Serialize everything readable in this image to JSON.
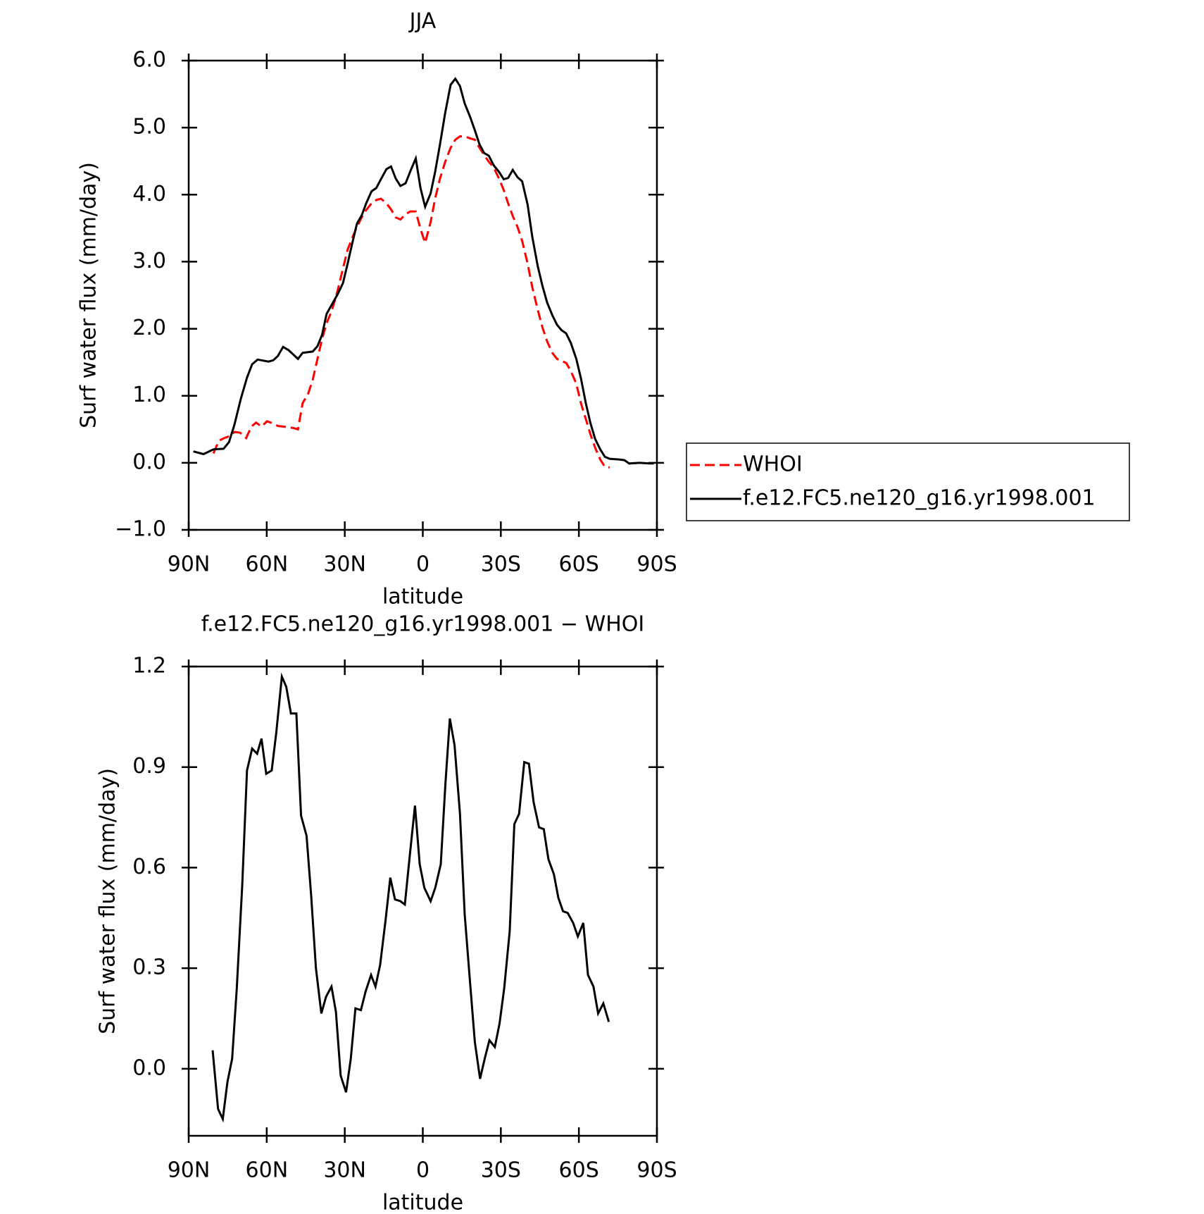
{
  "chart_data": [
    {
      "type": "line",
      "title": "JJA",
      "xlabel": "latitude",
      "ylabel": "Surf water flux (mm/day)",
      "xlim": [
        90,
        -90
      ],
      "xticks": [
        {
          "value": 90,
          "label": "90N"
        },
        {
          "value": 60,
          "label": "60N"
        },
        {
          "value": 30,
          "label": "30N"
        },
        0,
        {
          "value": -30,
          "label": "30S"
        },
        {
          "value": -60,
          "label": "60S"
        },
        {
          "value": -90,
          "label": "90S"
        }
      ],
      "ylim": [
        -1,
        6
      ],
      "yticks": [
        {
          "value": -1,
          "label": "−1.0"
        },
        {
          "value": 0,
          "label": "0.0"
        },
        {
          "value": 1,
          "label": "1.0"
        },
        {
          "value": 2,
          "label": "2.0"
        },
        {
          "value": 3,
          "label": "3.0"
        },
        {
          "value": 4,
          "label": "4.0"
        },
        {
          "value": 5,
          "label": "5.0"
        },
        {
          "value": 6,
          "label": "6.0"
        }
      ],
      "legend": "outside-right",
      "series": [
        {
          "name": "WHOI",
          "color": "#ff0000",
          "line_style": "dashed",
          "x": [
            80.5,
            78.4,
            76.3,
            74.2,
            72.4,
            70.3,
            67.9,
            65.9,
            64.1,
            62.0,
            59.9,
            57.8,
            55.7,
            53.6,
            51.6,
            49.8,
            48.0,
            46.2,
            44.1,
            42.3,
            40.5,
            38.7,
            37.0,
            34.9,
            32.8,
            31.0,
            28.9,
            27.1,
            25.3,
            23.5,
            21.8,
            19.7,
            17.9,
            16.1,
            14.0,
            12.2,
            10.4,
            8.6,
            6.6,
            4.8,
            2.7,
            0.9,
            -0.9,
            -3.0,
            -4.8,
            -6.6,
            -8.6,
            -10.7,
            -12.5,
            -14.3,
            -16.1,
            -18.2,
            -20.0,
            -21.8,
            -23.6,
            -25.4,
            -27.2,
            -29.3,
            -31.1,
            -32.8,
            -34.6,
            -36.4,
            -38.2,
            -40.3,
            -42.1,
            -44.2,
            -46.0,
            -47.8,
            -49.8,
            -51.6,
            -53.3,
            -55.1,
            -56.9,
            -59.0,
            -60.8,
            -62.6,
            -64.4,
            -66.2,
            -68.2,
            -70.0,
            -71.8
          ],
          "values": [
            0.14,
            0.33,
            0.37,
            0.4,
            0.46,
            0.45,
            0.37,
            0.54,
            0.6,
            0.54,
            0.62,
            0.59,
            0.55,
            0.54,
            0.53,
            0.52,
            0.5,
            0.89,
            1.03,
            1.24,
            1.55,
            1.85,
            2.08,
            2.28,
            2.56,
            2.85,
            3.18,
            3.36,
            3.52,
            3.66,
            3.77,
            3.87,
            3.92,
            3.94,
            3.87,
            3.78,
            3.66,
            3.63,
            3.71,
            3.75,
            3.75,
            3.49,
            3.28,
            3.59,
            3.95,
            4.24,
            4.49,
            4.7,
            4.82,
            4.87,
            4.87,
            4.84,
            4.82,
            4.7,
            4.59,
            4.49,
            4.41,
            4.24,
            4.07,
            3.87,
            3.68,
            3.52,
            3.31,
            2.97,
            2.62,
            2.28,
            2.02,
            1.81,
            1.64,
            1.55,
            1.52,
            1.49,
            1.37,
            1.18,
            0.89,
            0.66,
            0.43,
            0.23,
            0.05,
            -0.06,
            -0.07
          ]
        },
        {
          "name": "f.e12.FC5.ne120_g16.yr1998.001",
          "color": "#000000",
          "line_style": "solid",
          "x": [
            88.2,
            84.3,
            80.5,
            76.6,
            74.5,
            72.4,
            70.0,
            67.6,
            65.6,
            63.5,
            59.3,
            57.5,
            55.8,
            53.7,
            51.6,
            48.0,
            46.2,
            42.3,
            40.5,
            38.7,
            37.0,
            32.8,
            30.7,
            28.9,
            27.1,
            25.3,
            23.5,
            21.8,
            19.7,
            17.9,
            16.1,
            14.0,
            12.2,
            10.4,
            8.6,
            6.6,
            4.8,
            2.7,
            0.9,
            -0.9,
            -3.0,
            -4.8,
            -6.6,
            -8.6,
            -10.7,
            -12.5,
            -14.3,
            -16.1,
            -18.2,
            -20.0,
            -21.8,
            -23.6,
            -25.4,
            -27.2,
            -29.3,
            -31.1,
            -32.8,
            -34.6,
            -36.4,
            -38.2,
            -40.3,
            -42.1,
            -44.2,
            -46.0,
            -47.8,
            -49.8,
            -51.6,
            -53.3,
            -55.1,
            -56.9,
            -59.0,
            -60.8,
            -62.6,
            -64.4,
            -66.2,
            -68.2,
            -70.0,
            -71.8,
            -75.4,
            -77.5,
            -79.3,
            -83.4,
            -87.0,
            -88.8
          ],
          "values": [
            0.17,
            0.13,
            0.2,
            0.21,
            0.31,
            0.57,
            0.95,
            1.27,
            1.47,
            1.54,
            1.51,
            1.53,
            1.59,
            1.73,
            1.68,
            1.55,
            1.64,
            1.66,
            1.74,
            1.91,
            2.22,
            2.51,
            2.68,
            2.97,
            3.28,
            3.57,
            3.69,
            3.87,
            4.05,
            4.1,
            4.23,
            4.38,
            4.42,
            4.24,
            4.13,
            4.17,
            4.35,
            4.54,
            4.1,
            3.82,
            4.02,
            4.35,
            4.75,
            5.22,
            5.64,
            5.73,
            5.62,
            5.36,
            5.16,
            4.96,
            4.75,
            4.62,
            4.58,
            4.44,
            4.34,
            4.23,
            4.25,
            4.37,
            4.26,
            4.2,
            3.85,
            3.37,
            2.93,
            2.64,
            2.39,
            2.2,
            2.06,
            1.98,
            1.93,
            1.79,
            1.55,
            1.26,
            0.9,
            0.6,
            0.36,
            0.2,
            0.09,
            0.06,
            0.05,
            0.04,
            -0.01,
            0.0,
            -0.01,
            -0.01
          ]
        }
      ]
    },
    {
      "type": "line",
      "title": "f.e12.FC5.ne120_g16.yr1998.001 − WHOI",
      "xlabel": "latitude",
      "ylabel": "Surf water flux (mm/day)",
      "xlim": [
        90,
        -90
      ],
      "xticks": [
        {
          "value": 90,
          "label": "90N"
        },
        {
          "value": 60,
          "label": "60N"
        },
        {
          "value": 30,
          "label": "30N"
        },
        0,
        {
          "value": -30,
          "label": "30S"
        },
        {
          "value": -60,
          "label": "60S"
        },
        {
          "value": -90,
          "label": "90S"
        }
      ],
      "ylim": [
        -0.2,
        1.2
      ],
      "yticks": [
        {
          "value": 0,
          "label": "0.0"
        },
        0.3,
        0.6,
        0.9,
        1.2
      ],
      "series": [
        {
          "color": "#000000",
          "line_style": "solid",
          "x": [
            80.8,
            78.7,
            76.9,
            75.1,
            73.3,
            71.5,
            69.4,
            67.6,
            65.6,
            63.7,
            62.0,
            60.2,
            58.1,
            56.3,
            54.2,
            52.5,
            50.7,
            48.6,
            46.8,
            44.7,
            42.9,
            41.1,
            39.0,
            37.2,
            35.1,
            33.4,
            31.6,
            29.5,
            27.7,
            25.9,
            23.8,
            22.0,
            19.9,
            18.2,
            16.4,
            14.3,
            12.5,
            10.7,
            8.6,
            6.9,
            5.1,
            3.0,
            1.2,
            -0.6,
            -3.0,
            -4.8,
            -6.9,
            -8.7,
            -10.4,
            -12.2,
            -14.3,
            -16.1,
            -18.2,
            -20.0,
            -22.0,
            -23.8,
            -25.6,
            -27.7,
            -29.5,
            -31.3,
            -33.4,
            -35.2,
            -37.0,
            -39.0,
            -40.8,
            -42.6,
            -44.7,
            -46.5,
            -48.3,
            -50.4,
            -52.1,
            -53.9,
            -55.7,
            -57.8,
            -59.6,
            -61.7,
            -63.5,
            -65.6,
            -67.4,
            -69.4,
            -71.5
          ],
          "values": [
            0.055,
            -0.12,
            -0.15,
            -0.04,
            0.03,
            0.24,
            0.55,
            0.89,
            0.955,
            0.94,
            0.985,
            0.88,
            0.89,
            1.005,
            1.17,
            1.14,
            1.06,
            1.06,
            0.755,
            0.695,
            0.515,
            0.3,
            0.165,
            0.215,
            0.245,
            0.17,
            -0.02,
            -0.07,
            0.03,
            0.18,
            0.175,
            0.23,
            0.28,
            0.245,
            0.31,
            0.445,
            0.57,
            0.505,
            0.5,
            0.49,
            0.63,
            0.785,
            0.61,
            0.54,
            0.5,
            0.54,
            0.61,
            0.85,
            1.045,
            0.965,
            0.76,
            0.46,
            0.255,
            0.08,
            -0.03,
            0.03,
            0.085,
            0.065,
            0.135,
            0.24,
            0.41,
            0.73,
            0.76,
            0.915,
            0.91,
            0.795,
            0.72,
            0.715,
            0.625,
            0.58,
            0.51,
            0.47,
            0.465,
            0.435,
            0.395,
            0.435,
            0.28,
            0.245,
            0.165,
            0.195,
            0.14
          ]
        }
      ]
    }
  ]
}
